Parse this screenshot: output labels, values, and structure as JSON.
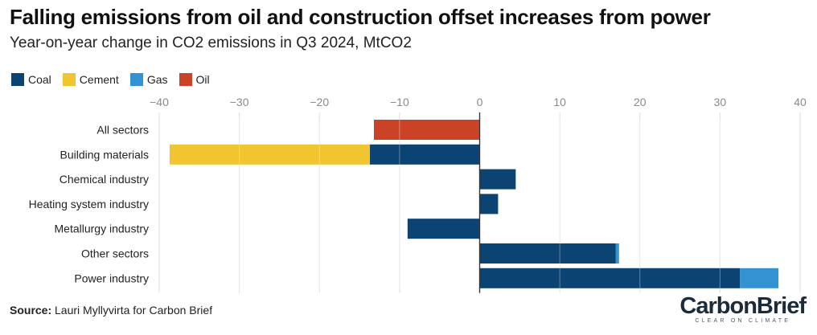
{
  "title": "Falling emissions from oil and construction offset increases from power",
  "subtitle": "Year-on-year change in CO2 emissions in Q3 2024, MtCO2",
  "source_label": "Source:",
  "source_text": "Lauri Myllyvirta for Carbon Brief",
  "logo": {
    "part1": "Carbon",
    "part2": "Brief",
    "tagline": "CLEAR ON CLIMATE"
  },
  "colors": {
    "Coal": "#0b4373",
    "Cement": "#f0c530",
    "Gas": "#3392d2",
    "Oil": "#cb4327"
  },
  "chart_data": {
    "type": "bar",
    "orientation": "horizontal",
    "stacked": true,
    "title": "Falling emissions from oil and construction offset increases from power",
    "subtitle": "Year-on-year change in CO2 emissions in Q3 2024, MtCO2",
    "xlim": [
      -40,
      40
    ],
    "xticks": [
      -40,
      -30,
      -20,
      -10,
      0,
      10,
      20,
      30,
      40
    ],
    "xtick_labels": [
      "−40",
      "−30",
      "−20",
      "−10",
      "0",
      "10",
      "20",
      "30",
      "40"
    ],
    "grid": true,
    "legend_position": "top-left",
    "categories": [
      "All sectors",
      "Building materials",
      "Chemical industry",
      "Heating system industry",
      "Metallurgy industry",
      "Other sectors",
      "Power industry"
    ],
    "series": [
      {
        "name": "Coal",
        "values": [
          0,
          -13.7,
          4.5,
          2.3,
          -9.0,
          17.0,
          32.5
        ]
      },
      {
        "name": "Cement",
        "values": [
          0,
          -25.0,
          0,
          0,
          0,
          0,
          0
        ]
      },
      {
        "name": "Gas",
        "values": [
          0,
          0,
          0,
          0,
          0,
          0.4,
          4.8
        ]
      },
      {
        "name": "Oil",
        "values": [
          -13.2,
          0,
          0,
          0,
          0,
          0,
          0
        ]
      }
    ]
  }
}
